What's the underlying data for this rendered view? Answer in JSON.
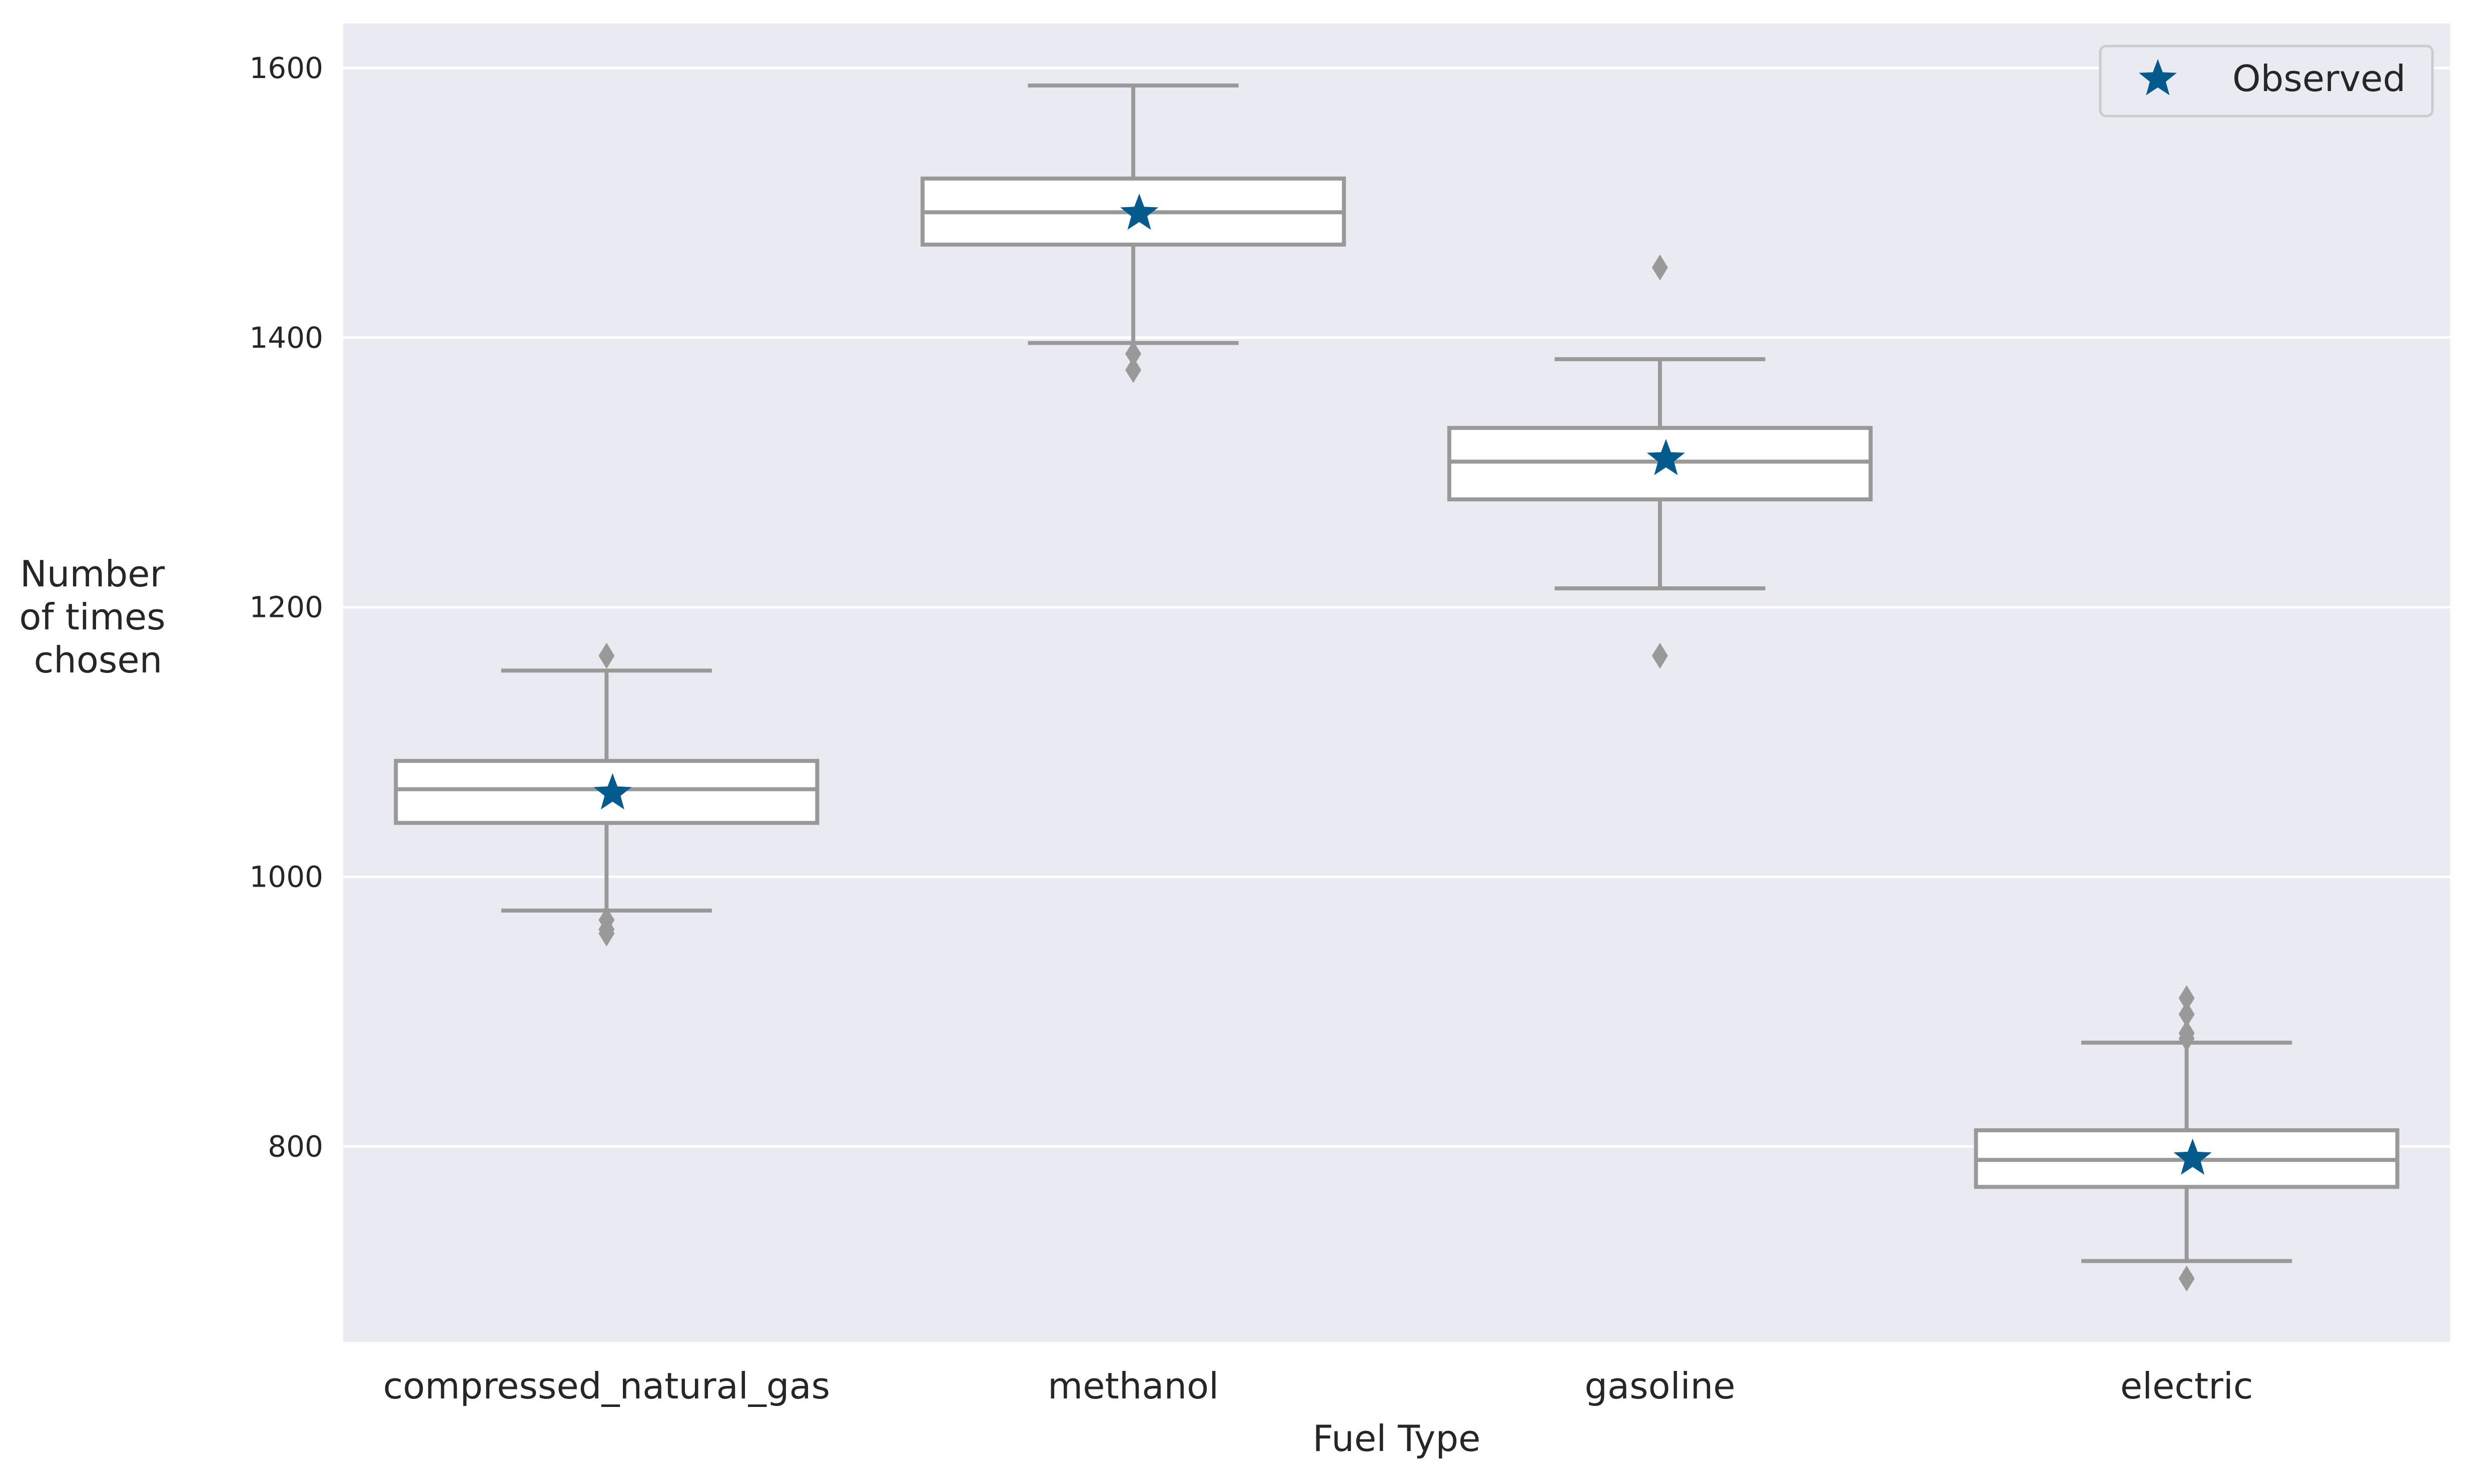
{
  "chart_data": {
    "type": "box",
    "categories": [
      "compressed_natural_gas",
      "methanol",
      "gasoline",
      "electric"
    ],
    "xlabel": "Fuel Type",
    "ylabel": [
      "Number",
      "of times",
      "chosen"
    ],
    "ylim": [
      655,
      1633
    ],
    "yticks": [
      800,
      1000,
      1200,
      1400,
      1600
    ],
    "grid": true,
    "legend": {
      "position": "top-right",
      "entries": [
        "Observed"
      ]
    },
    "boxes": [
      {
        "category": "compressed_natural_gas",
        "whisker_low": 975,
        "q1": 1040,
        "median": 1065,
        "q3": 1086,
        "whisker_high": 1153,
        "outliers": [
          968,
          961,
          958,
          1164
        ]
      },
      {
        "category": "methanol",
        "whisker_low": 1396,
        "q1": 1469,
        "median": 1493,
        "q3": 1518,
        "whisker_high": 1587,
        "outliers": [
          1388,
          1376
        ]
      },
      {
        "category": "gasoline",
        "whisker_low": 1214,
        "q1": 1280,
        "median": 1308,
        "q3": 1333,
        "whisker_high": 1384,
        "outliers": [
          1164,
          1452
        ]
      },
      {
        "category": "electric",
        "whisker_low": 715,
        "q1": 770,
        "median": 790,
        "q3": 812,
        "whisker_high": 877,
        "outliers": [
          702,
          880,
          884,
          898,
          910
        ]
      }
    ],
    "observed": [
      {
        "category": "compressed_natural_gas",
        "value": 1062
      },
      {
        "category": "methanol",
        "value": 1492
      },
      {
        "category": "gasoline",
        "value": 1310
      },
      {
        "category": "electric",
        "value": 791
      }
    ],
    "colors": {
      "plot_background": "#eaeaf2",
      "grid": "#ffffff",
      "box_line": "#999999",
      "box_fill": "#ffffff",
      "observed": "#045a8d",
      "text": "#262626"
    }
  }
}
